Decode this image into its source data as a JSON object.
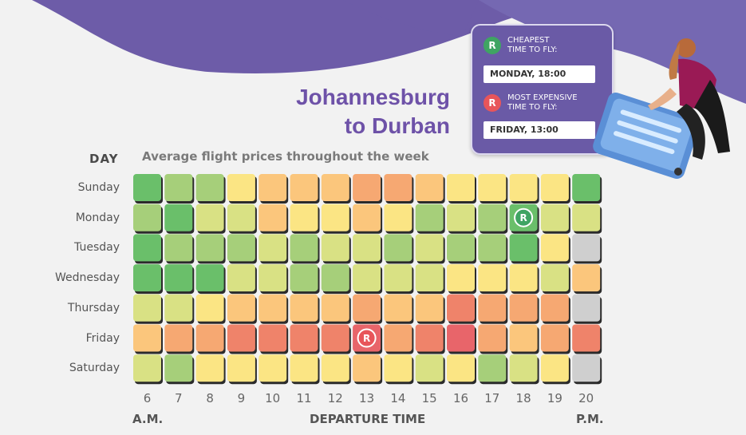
{
  "header": {
    "title_line1": "Johannesburg",
    "title_line2": "to Durban",
    "subtitle": "Average flight prices throughout the week",
    "day_label": "DAY"
  },
  "legend_card": {
    "cheapest_label_1": "CHEAPEST",
    "cheapest_label_2": "TIME TO FLY:",
    "cheapest_value": "MONDAY, 18:00",
    "expensive_label_1": "MOST EXPENSIVE",
    "expensive_label_2": "TIME TO FLY:",
    "expensive_value": "FRIDAY, 13:00",
    "badge_text": "R"
  },
  "footer": {
    "am": "A.M.",
    "xlabel": "DEPARTURE TIME",
    "pm": "P.M."
  },
  "colors": {
    "accent_purple": "#6e52a8",
    "cheap_badge": "#3fa463",
    "expensive_badge": "#e8555a",
    "level_1": "#6abf6a",
    "level_2": "#a6cf7a",
    "level_3": "#d9e184",
    "level_4": "#fbe584",
    "level_5": "#fbc67c",
    "level_6": "#f6a872",
    "level_7": "#ef836a",
    "level_8": "#e8656a",
    "no_data": "#cfcfcf"
  },
  "chart_data": {
    "type": "heatmap",
    "title": "Johannesburg to Durban",
    "subtitle": "Average flight prices throughout the week",
    "xlabel": "DEPARTURE TIME",
    "ylabel": "DAY",
    "x": [
      6,
      7,
      8,
      9,
      10,
      11,
      12,
      13,
      14,
      15,
      16,
      17,
      18,
      19,
      20
    ],
    "y": [
      "Sunday",
      "Monday",
      "Tuesday",
      "Wednesday",
      "Thursday",
      "Friday",
      "Saturday"
    ],
    "scale": "relative price level 1 (cheapest) to 8 (most expensive), 0 = no data",
    "values": [
      [
        1,
        2,
        2,
        4,
        5,
        5,
        5,
        6,
        6,
        5,
        4,
        4,
        4,
        4,
        1
      ],
      [
        2,
        1,
        3,
        3,
        5,
        4,
        4,
        5,
        4,
        2,
        3,
        2,
        1,
        3,
        3
      ],
      [
        1,
        2,
        2,
        2,
        3,
        2,
        3,
        3,
        2,
        3,
        2,
        2,
        1,
        4,
        0
      ],
      [
        1,
        1,
        1,
        3,
        3,
        2,
        2,
        3,
        3,
        3,
        4,
        4,
        4,
        3,
        5
      ],
      [
        3,
        3,
        4,
        5,
        5,
        5,
        5,
        6,
        5,
        5,
        7,
        6,
        6,
        6,
        0
      ],
      [
        5,
        6,
        6,
        7,
        7,
        7,
        7,
        8,
        6,
        7,
        8,
        6,
        5,
        6,
        7
      ],
      [
        3,
        2,
        4,
        4,
        4,
        4,
        4,
        5,
        4,
        3,
        4,
        2,
        3,
        4,
        0
      ]
    ],
    "cheapest": {
      "day": "Monday",
      "hour": 18
    },
    "most_expensive": {
      "day": "Friday",
      "hour": 13
    }
  }
}
